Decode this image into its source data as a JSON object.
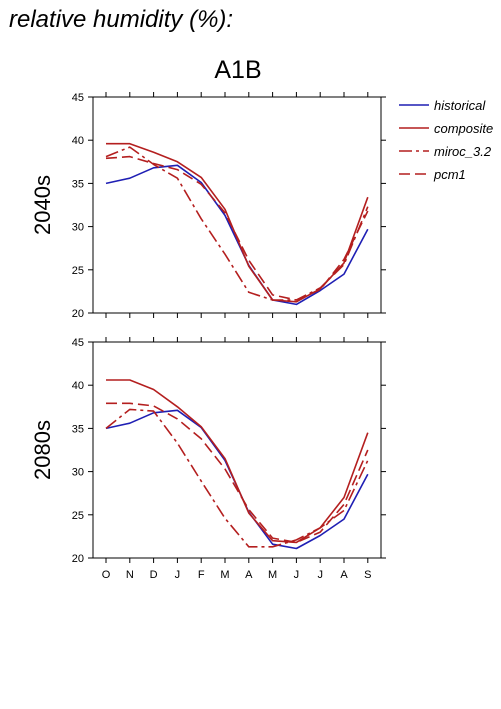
{
  "heading": "relative humidity (%):",
  "scenario": "A1B",
  "colors": {
    "historical": "#1f1fb4",
    "composite": "#b41f1f",
    "miroc_3.2": "#b41f1f",
    "pcm1": "#b41f1f"
  },
  "chart_data": {
    "type": "line",
    "categories": [
      "O",
      "N",
      "D",
      "J",
      "F",
      "M",
      "A",
      "M",
      "J",
      "J",
      "A",
      "S"
    ],
    "ylim": [
      20,
      45
    ],
    "yticks": [
      20,
      25,
      30,
      35,
      40,
      45
    ],
    "grid": false,
    "legend_placement": "right",
    "legend": [
      {
        "name": "historical",
        "style": "solid",
        "color": "#1f1fb4"
      },
      {
        "name": "composite",
        "style": "solid",
        "color": "#b41f1f"
      },
      {
        "name": "miroc_3.2",
        "style": "dashdot",
        "color": "#b41f1f"
      },
      {
        "name": "pcm1",
        "style": "dashed",
        "color": "#b41f1f"
      }
    ],
    "panels": [
      {
        "label": "2040s",
        "series": [
          {
            "name": "historical",
            "values": [
              35.0,
              35.6,
              36.8,
              37.1,
              35.1,
              31.3,
              25.5,
              21.5,
              21.0,
              22.6,
              24.5,
              29.7
            ]
          },
          {
            "name": "composite",
            "values": [
              39.6,
              39.6,
              38.6,
              37.5,
              35.7,
              32.0,
              25.4,
              21.5,
              21.3,
              22.8,
              25.8,
              33.4
            ]
          },
          {
            "name": "miroc_3.2",
            "values": [
              38.1,
              39.2,
              37.2,
              35.6,
              30.9,
              26.8,
              22.4,
              21.5,
              21.5,
              22.9,
              25.6,
              32.3
            ]
          },
          {
            "name": "pcm1",
            "values": [
              37.9,
              38.1,
              37.3,
              36.6,
              34.9,
              31.6,
              26.1,
              22.1,
              21.5,
              22.7,
              26.2,
              31.8
            ]
          }
        ]
      },
      {
        "label": "2080s",
        "series": [
          {
            "name": "historical",
            "values": [
              35.0,
              35.6,
              36.8,
              37.1,
              35.1,
              31.3,
              25.3,
              21.6,
              21.1,
              22.6,
              24.5,
              29.7
            ]
          },
          {
            "name": "composite",
            "values": [
              40.6,
              40.6,
              39.5,
              37.5,
              35.2,
              31.5,
              25.2,
              22.0,
              21.8,
              23.5,
              27.0,
              34.5
            ]
          },
          {
            "name": "miroc_3.2",
            "values": [
              35.0,
              37.2,
              37.0,
              33.3,
              28.9,
              24.6,
              21.3,
              21.3,
              22.1,
              23.5,
              25.5,
              31.3
            ]
          },
          {
            "name": "pcm1",
            "values": [
              37.9,
              37.9,
              37.6,
              36.1,
              33.8,
              30.3,
              25.6,
              22.3,
              21.8,
              23.0,
              26.2,
              32.5
            ]
          }
        ]
      }
    ]
  }
}
